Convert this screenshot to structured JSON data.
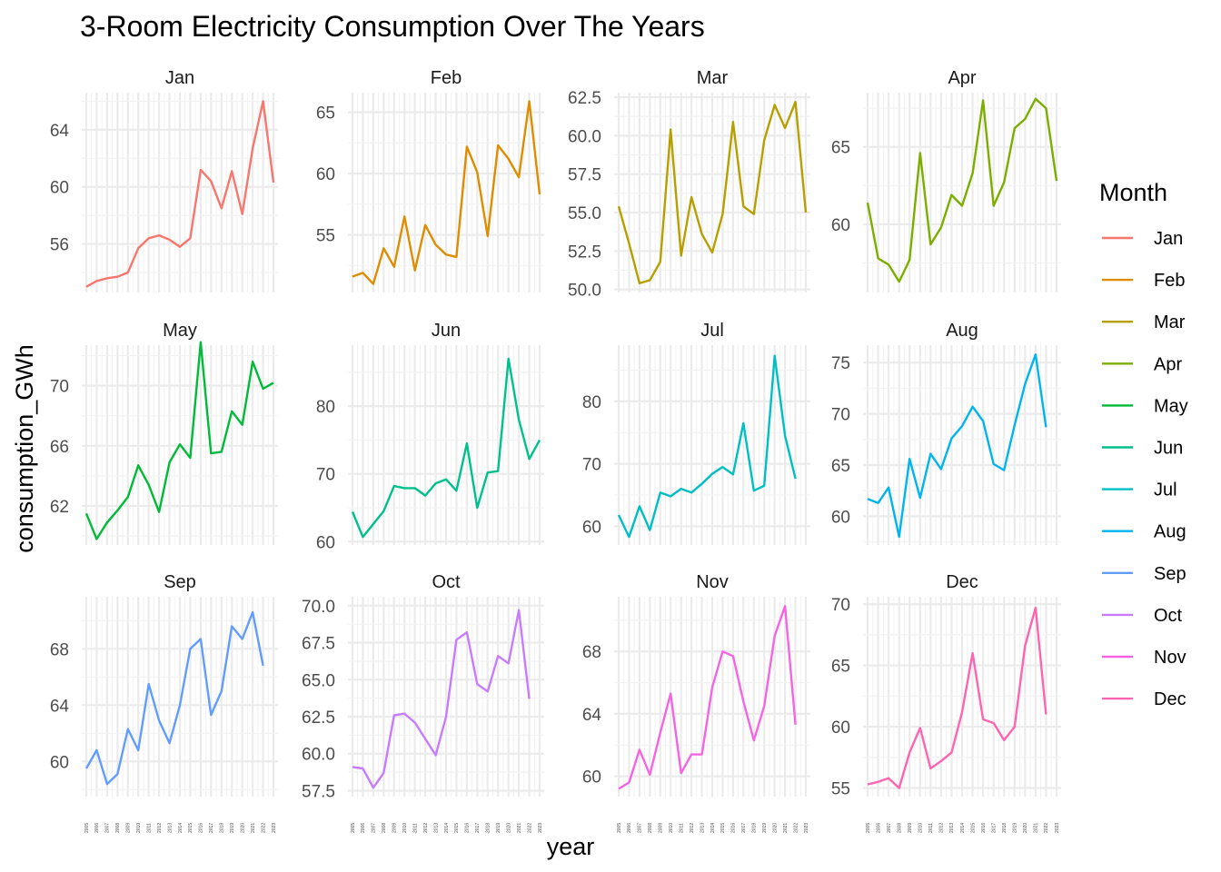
{
  "chart_data": {
    "type": "line",
    "title": "3-Room Electricity Consumption Over The Years",
    "xlabel": "year",
    "ylabel": "consumption_GWh",
    "legend": {
      "title": "Month",
      "placement": "right"
    },
    "grid": true,
    "facet_layout": "4 columns x 3 rows, free y scales",
    "x": [
      "2005",
      "2006",
      "2007",
      "2008",
      "2009",
      "2010",
      "2011",
      "2012",
      "2013",
      "2014",
      "2015",
      "2016",
      "2017",
      "2018",
      "2019",
      "2020",
      "2021",
      "2022",
      "2023"
    ],
    "series": [
      {
        "name": "Jan",
        "color": "#F8766D",
        "ylim": [
          52.6,
          66.6
        ],
        "yticks": [
          56,
          60,
          64
        ],
        "values": [
          53.0,
          53.4,
          53.6,
          53.7,
          54.0,
          55.7,
          56.4,
          56.6,
          56.3,
          55.8,
          56.4,
          61.2,
          60.4,
          58.5,
          61.1,
          58.1,
          62.7,
          66.0,
          60.3
        ]
      },
      {
        "name": "Feb",
        "color": "#DE8C00",
        "ylim": [
          50.3,
          66.6
        ],
        "yticks": [
          55,
          60,
          65
        ],
        "values": [
          51.6,
          51.9,
          51.0,
          53.9,
          52.4,
          56.5,
          52.1,
          55.8,
          54.2,
          53.4,
          53.2,
          62.2,
          60.1,
          54.9,
          62.3,
          61.2,
          59.7,
          65.9,
          58.3
        ]
      },
      {
        "name": "Mar",
        "color": "#B79F00",
        "ylim": [
          49.8,
          62.8
        ],
        "yticks": [
          50.0,
          52.5,
          55.0,
          57.5,
          60.0,
          62.5
        ],
        "values": [
          55.4,
          53.0,
          50.4,
          50.6,
          51.8,
          60.4,
          52.2,
          56.0,
          53.6,
          52.4,
          54.9,
          60.9,
          55.4,
          54.9,
          59.7,
          62.0,
          60.5,
          62.2,
          55.0
        ]
      },
      {
        "name": "Apr",
        "color": "#7CAE00",
        "ylim": [
          55.6,
          68.5
        ],
        "yticks": [
          60,
          65
        ],
        "values": [
          61.4,
          57.8,
          57.4,
          56.3,
          57.7,
          64.6,
          58.7,
          59.8,
          61.9,
          61.2,
          63.3,
          68.0,
          61.2,
          62.7,
          66.2,
          66.8,
          68.1,
          67.5,
          62.8
        ]
      },
      {
        "name": "May",
        "color": "#00BA38",
        "ylim": [
          59.4,
          72.7
        ],
        "yticks": [
          62,
          66,
          70
        ],
        "values": [
          61.5,
          59.8,
          60.9,
          61.7,
          62.6,
          64.7,
          63.4,
          61.6,
          64.9,
          66.1,
          65.2,
          72.9,
          65.5,
          65.6,
          68.3,
          67.4,
          71.6,
          69.8,
          70.2
        ]
      },
      {
        "name": "Jun",
        "color": "#00C08B",
        "ylim": [
          59.5,
          89.0
        ],
        "yticks": [
          60,
          70,
          80
        ],
        "values": [
          64.4,
          60.7,
          62.6,
          64.5,
          68.2,
          67.9,
          67.9,
          66.8,
          68.6,
          69.2,
          67.5,
          74.5,
          65.0,
          70.2,
          70.4,
          87.0,
          78.0,
          72.2,
          75.0
        ]
      },
      {
        "name": "Jul",
        "color": "#00BFC4",
        "ylim": [
          57.0,
          89.0
        ],
        "yticks": [
          60,
          70,
          80
        ],
        "values": [
          61.8,
          58.3,
          63.2,
          59.4,
          65.4,
          64.8,
          66.0,
          65.4,
          66.8,
          68.4,
          69.5,
          68.3,
          76.5,
          65.7,
          66.5,
          87.3,
          74.5,
          67.6,
          null
        ]
      },
      {
        "name": "Aug",
        "color": "#00B4F0",
        "ylim": [
          57.2,
          76.7
        ],
        "yticks": [
          60,
          65,
          70,
          75
        ],
        "values": [
          61.7,
          61.3,
          62.8,
          58.0,
          65.6,
          61.8,
          66.1,
          64.6,
          67.6,
          68.8,
          70.7,
          69.3,
          65.1,
          64.5,
          68.9,
          72.9,
          75.8,
          68.7,
          null
        ]
      },
      {
        "name": "Sep",
        "color": "#619CFF",
        "ylim": [
          57.5,
          71.7
        ],
        "yticks": [
          60,
          64,
          68
        ],
        "values": [
          59.5,
          60.8,
          58.4,
          59.1,
          62.3,
          60.8,
          65.5,
          62.9,
          61.3,
          64.0,
          68.0,
          68.7,
          63.3,
          65.0,
          69.6,
          68.7,
          70.6,
          66.8,
          null
        ]
      },
      {
        "name": "Oct",
        "color": "#C77CFF",
        "ylim": [
          57.1,
          70.6
        ],
        "yticks": [
          57.5,
          60.0,
          62.5,
          65.0,
          67.5,
          70.0
        ],
        "values": [
          59.1,
          59.0,
          57.7,
          58.7,
          62.6,
          62.7,
          62.1,
          61.0,
          59.9,
          62.5,
          67.7,
          68.2,
          64.7,
          64.2,
          66.6,
          66.1,
          69.7,
          63.7,
          null
        ]
      },
      {
        "name": "Nov",
        "color": "#F564E3",
        "ylim": [
          58.7,
          71.5
        ],
        "yticks": [
          60,
          64,
          68
        ],
        "values": [
          59.2,
          59.6,
          61.7,
          60.1,
          62.8,
          65.3,
          60.2,
          61.4,
          61.4,
          65.7,
          68.0,
          67.7,
          64.8,
          62.3,
          64.5,
          69.0,
          70.9,
          63.3,
          null
        ]
      },
      {
        "name": "Dec",
        "color": "#FF64B0",
        "ylim": [
          54.3,
          70.6
        ],
        "yticks": [
          55,
          60,
          65,
          70
        ],
        "values": [
          55.3,
          55.5,
          55.8,
          55.0,
          57.9,
          59.9,
          56.6,
          57.2,
          57.9,
          61.2,
          66.0,
          60.6,
          60.3,
          58.9,
          60.0,
          66.6,
          69.7,
          61.0,
          null
        ]
      }
    ]
  }
}
